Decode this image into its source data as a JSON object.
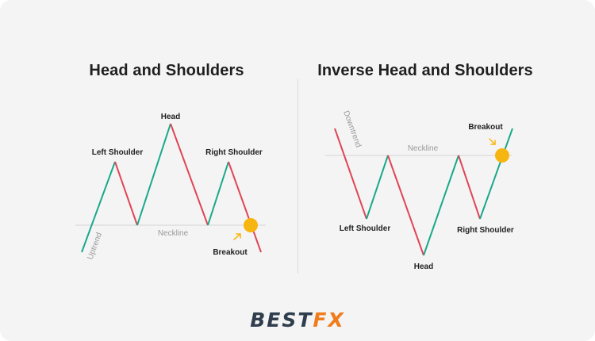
{
  "titles": {
    "left": "Head and Shoulders",
    "right": "Inverse Head and Shoulders"
  },
  "left_diagram": {
    "trend_label": "Uptrend",
    "neckline_label": "Neckline",
    "left_shoulder": "Left Shoulder",
    "head": "Head",
    "right_shoulder": "Right Shoulder",
    "breakout": "Breakout"
  },
  "right_diagram": {
    "trend_label": "Downtrend",
    "neckline_label": "Neckline",
    "left_shoulder": "Left Shoulder",
    "head": "Head",
    "right_shoulder": "Right Shoulder",
    "breakout": "Breakout"
  },
  "colors": {
    "up": "#1aa88a",
    "down": "#e04556",
    "breakout_dot": "#f7b50f",
    "neckline": "#d3d3d3"
  },
  "logo": {
    "part1": "BEST",
    "part2": "FX"
  }
}
